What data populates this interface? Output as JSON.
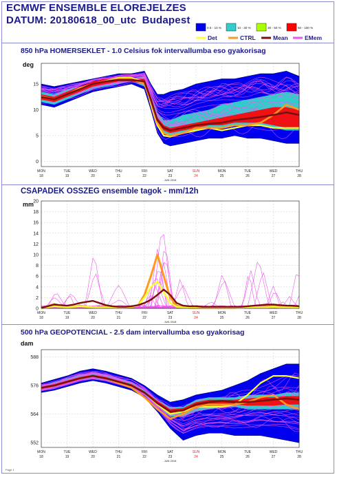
{
  "header": {
    "title": "ECMWF ENSEMBLE ELOREJELZES",
    "subtitle_prefix": "DATUM:",
    "subtitle_date": "20180618_00_utc",
    "subtitle_city": "Budapest"
  },
  "legend": {
    "prob": [
      {
        "label": "0.5 - 10 %",
        "color": "#0000ee"
      },
      {
        "label": "10 - 30 %",
        "color": "#33cccc"
      },
      {
        "label": "30 - 50 %",
        "color": "#aaff00"
      },
      {
        "label": "50 - 100 %",
        "color": "#ff0000"
      }
    ],
    "lines": [
      {
        "label": "Det",
        "color": "#ffff33"
      },
      {
        "label": "CTRL",
        "color": "#ff9922"
      },
      {
        "label": "Mean",
        "color": "#7a0f0f"
      },
      {
        "label": "EMem",
        "color": "#ee55ee"
      }
    ]
  },
  "colors": {
    "title": "#1a1a8c",
    "sunday": "#ee2222",
    "band": "#0000ee",
    "cyan": "#33cccc",
    "red": "#ff0000",
    "member": "#ee55ee",
    "ctrl": "#ff9922",
    "det": "#ffff33",
    "mean": "#7a0f0f"
  },
  "xaxis": {
    "days": [
      "MON",
      "TUE",
      "WED",
      "THU",
      "FRI",
      "SAT",
      "SUN",
      "MON",
      "TUE",
      "WED",
      "THU"
    ],
    "dates": [
      "18",
      "19",
      "20",
      "21",
      "22",
      "23",
      "24",
      "25",
      "26",
      "27",
      "28"
    ],
    "month": "JUN 2018",
    "sunday_index": 6
  },
  "footer": "Page 1",
  "chart_data": [
    {
      "type": "line",
      "title": "850 hPa HOMERSEKLET - 1.0 Celsius fok intervallumba eso gyakorisag",
      "ylabel": "deg",
      "ylim": [
        -1,
        19
      ],
      "yticks": [
        0,
        5,
        10,
        15
      ],
      "x": [
        0,
        0.5,
        1,
        1.5,
        2,
        2.5,
        3,
        3.5,
        4,
        4.25,
        4.5,
        4.75,
        5,
        5.5,
        6,
        6.5,
        7,
        7.5,
        8,
        8.5,
        9,
        9.5,
        10
      ],
      "band_low": [
        11,
        10.5,
        11.5,
        12.5,
        13.5,
        14,
        14.5,
        15,
        14,
        10,
        5.5,
        3.5,
        3,
        3.5,
        4,
        4.5,
        4.5,
        5,
        4.5,
        4.5,
        4,
        3.5,
        3.5
      ],
      "band_high": [
        15,
        14.5,
        15,
        15.5,
        16,
        16.5,
        17,
        17,
        17.5,
        15,
        13,
        13,
        13.5,
        14,
        15,
        15.5,
        16,
        16,
        16.5,
        17,
        17,
        17.5,
        16.5
      ],
      "cyan_low": [
        11.5,
        11,
        12,
        13,
        14,
        14.5,
        15,
        15.5,
        14.5,
        11,
        7,
        5.5,
        5,
        5.5,
        6,
        6.5,
        6.5,
        7,
        7,
        7,
        6.5,
        6,
        6
      ],
      "cyan_high": [
        13.5,
        13,
        14,
        14.5,
        15,
        15.5,
        16,
        16,
        16.5,
        13,
        9.5,
        8,
        8,
        9,
        9.5,
        10,
        11,
        11.5,
        12,
        12.5,
        13,
        13.5,
        13
      ],
      "red_low": [
        12,
        11.5,
        12.5,
        13.5,
        14.5,
        15,
        15.5,
        15.5,
        15,
        11.5,
        7.5,
        6,
        5.5,
        6,
        6.5,
        7,
        7,
        7.5,
        7.5,
        7.5,
        7,
        6.5,
        6.5
      ],
      "red_high": [
        13,
        12.5,
        13.5,
        14.5,
        15.5,
        16,
        16,
        16,
        16,
        12.5,
        8.5,
        7,
        6.5,
        7,
        7.5,
        8,
        8.5,
        9,
        9.5,
        10,
        10.5,
        10.5,
        10
      ],
      "series": [
        {
          "name": "Mean",
          "values": [
            12.5,
            12,
            13,
            14,
            15,
            15.5,
            15.8,
            15.8,
            15.5,
            12,
            8,
            6.5,
            6,
            6.5,
            7,
            7.3,
            7.5,
            8,
            8.3,
            8.6,
            9,
            9.5,
            9
          ]
        },
        {
          "name": "CTRL",
          "values": [
            12.5,
            12,
            13,
            14,
            15,
            15.5,
            16,
            16,
            15,
            11.5,
            7.5,
            5.5,
            5,
            5.5,
            6.5,
            6.5,
            6.5,
            7,
            7,
            7.5,
            9,
            11,
            10
          ]
        },
        {
          "name": "Det",
          "values": [
            12.6,
            12,
            13,
            14.2,
            15,
            15.6,
            16.2,
            16.2,
            15.4,
            11,
            7,
            5,
            4.8,
            5.5,
            6,
            6.5,
            6,
            6.5,
            7,
            7,
            6.5,
            6.5,
            6.5
          ]
        }
      ]
    },
    {
      "type": "line",
      "title": "CSAPADEK OSSZEG ensemble tagok - mm/12h",
      "ylabel": "mm",
      "ylim": [
        0,
        20
      ],
      "yticks": [
        0,
        2,
        4,
        6,
        8,
        10,
        12,
        14,
        16,
        18,
        20
      ],
      "yticklabels": [
        "0",
        "2",
        "4",
        "6",
        "8",
        "10",
        "12",
        "14",
        "16",
        "18",
        "20"
      ],
      "x": [
        0,
        0.25,
        0.5,
        0.75,
        1,
        1.25,
        1.5,
        1.75,
        2,
        2.25,
        2.5,
        2.75,
        3,
        3.25,
        3.5,
        3.75,
        4,
        4.25,
        4.5,
        4.75,
        5,
        5.25,
        5.5,
        5.75,
        6,
        6.25,
        6.5,
        6.75,
        7,
        7.25,
        7.5,
        7.75,
        8,
        8.25,
        8.5,
        8.75,
        9,
        9.25,
        9.5,
        9.75,
        10
      ],
      "series": [
        {
          "name": "CTRL",
          "values": [
            0,
            0.4,
            0.8,
            0.5,
            0.2,
            0.3,
            0.5,
            0.3,
            0.2,
            0.2,
            0.3,
            0.2,
            0.1,
            0.2,
            0.3,
            0.5,
            2.5,
            6,
            10,
            6,
            2,
            0.5,
            0.2,
            0.1,
            0.1,
            0.1,
            0.1,
            0.1,
            0.1,
            0.1,
            0.1,
            0.2,
            0.3,
            0.2,
            0.2,
            0.3,
            0.4,
            0.3,
            0.2,
            0.2,
            0.1
          ]
        },
        {
          "name": "Det",
          "values": [
            0,
            0.2,
            0.4,
            0.3,
            0.2,
            0.3,
            0.4,
            0.3,
            0.2,
            0.1,
            0.2,
            0.1,
            0.1,
            0.2,
            0.3,
            0.5,
            2,
            4,
            5,
            3,
            1,
            0.3,
            0.2,
            0.1,
            0.1,
            0.1,
            0.1,
            0.1,
            0.1,
            0.1,
            0.1,
            0.1,
            0.2,
            0.2,
            0.2,
            0.2,
            0.3,
            0.2,
            0.2,
            0.1,
            0.1
          ]
        },
        {
          "name": "Mean",
          "values": [
            0.1,
            0.4,
            0.7,
            0.6,
            0.5,
            0.7,
            1,
            1.2,
            1.4,
            1,
            0.6,
            0.4,
            0.3,
            0.3,
            0.4,
            0.6,
            1,
            1.6,
            2.5,
            3.5,
            2.5,
            1,
            0.5,
            0.4,
            0.4,
            0.3,
            0.3,
            0.3,
            0.3,
            0.3,
            0.3,
            0.3,
            0.4,
            0.5,
            0.6,
            0.7,
            0.7,
            0.6,
            0.5,
            0.5,
            0.4
          ]
        }
      ]
    },
    {
      "type": "line",
      "title": "500 hPa GEOPOTENCIAL - 2.5 dam intervallumba eso gyakorisag",
      "ylabel": "dam",
      "ylim": [
        550,
        591
      ],
      "yticks": [
        552,
        564,
        576,
        588
      ],
      "x": [
        0,
        0.5,
        1,
        1.5,
        2,
        2.5,
        3,
        3.5,
        4,
        4.5,
        5,
        5.5,
        6,
        6.5,
        7,
        7.5,
        8,
        8.5,
        9,
        9.5,
        10
      ],
      "band_low": [
        573,
        574,
        575.5,
        577,
        578,
        577,
        575.5,
        574,
        571,
        565,
        558,
        553,
        555,
        556,
        556,
        555,
        555,
        555,
        554,
        553,
        552
      ],
      "band_high": [
        577,
        578.5,
        580,
        582,
        583,
        582,
        580.5,
        579,
        576,
        572,
        569,
        570,
        572,
        573,
        574,
        576,
        578,
        581,
        583,
        585,
        585
      ],
      "cyan_low": [
        574,
        575,
        576.5,
        578,
        579,
        578,
        576.5,
        575,
        572,
        567,
        563,
        563,
        565,
        566,
        567,
        567,
        566,
        566,
        566,
        566,
        566
      ],
      "cyan_high": [
        576,
        577.5,
        579,
        580.5,
        581.5,
        580.5,
        579,
        577.5,
        574,
        570,
        567,
        567,
        570,
        571,
        571,
        571,
        572,
        572,
        572,
        573,
        573
      ],
      "red_low": [
        574.5,
        575.5,
        577,
        578.5,
        579.5,
        578.5,
        577,
        575.5,
        572.5,
        568,
        564,
        564.5,
        566.5,
        567.5,
        568,
        568,
        567.5,
        567.5,
        567.5,
        568,
        568
      ],
      "red_high": [
        575.5,
        576.5,
        578,
        579.5,
        580.5,
        579.5,
        578,
        576.5,
        573.5,
        569.5,
        566,
        566.5,
        569,
        570,
        570,
        570,
        570.5,
        571,
        571,
        571.5,
        571.5
      ],
      "series": [
        {
          "name": "Mean",
          "values": [
            575,
            576,
            577.5,
            579,
            580,
            579,
            577.5,
            576,
            573,
            568.5,
            565,
            565.5,
            568,
            569,
            569.5,
            569,
            569,
            569.5,
            570,
            570.5,
            570
          ]
        },
        {
          "name": "CTRL",
          "values": [
            575,
            576,
            577.5,
            579,
            580,
            579,
            577,
            575,
            571,
            566,
            562,
            564,
            567,
            568,
            568,
            568,
            569,
            571,
            572,
            568,
            566
          ]
        },
        {
          "name": "Det",
          "values": [
            575,
            576,
            577.5,
            579,
            580,
            579,
            577.5,
            576,
            573,
            568,
            564,
            565,
            567,
            567,
            567,
            568,
            572,
            577,
            580,
            580,
            579
          ]
        }
      ]
    }
  ]
}
